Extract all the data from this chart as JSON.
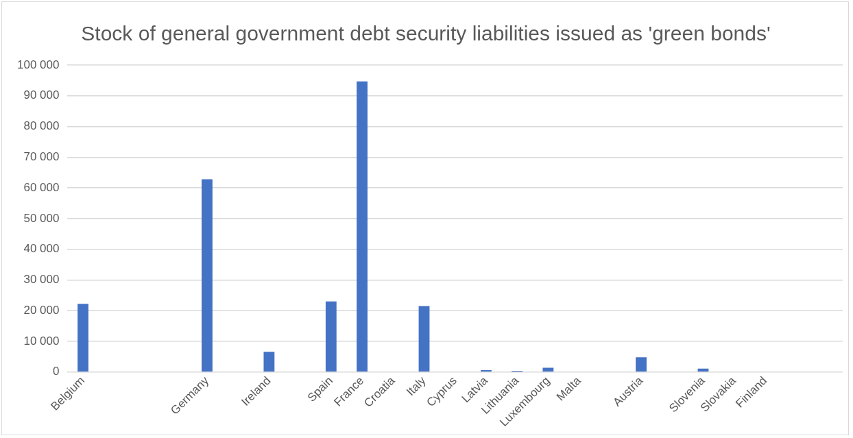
{
  "chart_data": {
    "type": "bar",
    "title": "Stock of general government debt security liabilities issued as 'green bonds'",
    "categories": [
      "Belgium",
      null,
      null,
      null,
      "Germany",
      null,
      "Ireland",
      null,
      "Spain",
      "France",
      "Croatia",
      "Italy",
      "Cyprus",
      "Latvia",
      "Lithuania",
      "Luxembourg",
      "Malta",
      null,
      "Austria",
      null,
      "Slovenia",
      "Slovakia",
      "Finland",
      null,
      null
    ],
    "values": [
      22200,
      null,
      null,
      null,
      62800,
      null,
      6600,
      null,
      23000,
      94700,
      0,
      21500,
      0,
      600,
      400,
      1400,
      0,
      null,
      4800,
      null,
      1100,
      0,
      0,
      null,
      null
    ],
    "color": "#4472c4",
    "ylim": [
      0,
      100000
    ],
    "yticks": [
      {
        "value": 0,
        "label": "0"
      },
      {
        "value": 10000,
        "label": "10 000"
      },
      {
        "value": 20000,
        "label": "20 000"
      },
      {
        "value": 30000,
        "label": "30 000"
      },
      {
        "value": 40000,
        "label": "40 000"
      },
      {
        "value": 50000,
        "label": "50 000"
      },
      {
        "value": 60000,
        "label": "60 000"
      },
      {
        "value": 70000,
        "label": "70 000"
      },
      {
        "value": 80000,
        "label": "80 000"
      },
      {
        "value": 90000,
        "label": "90 000"
      },
      {
        "value": 100000,
        "label": "100 000"
      }
    ],
    "grid": "y"
  }
}
